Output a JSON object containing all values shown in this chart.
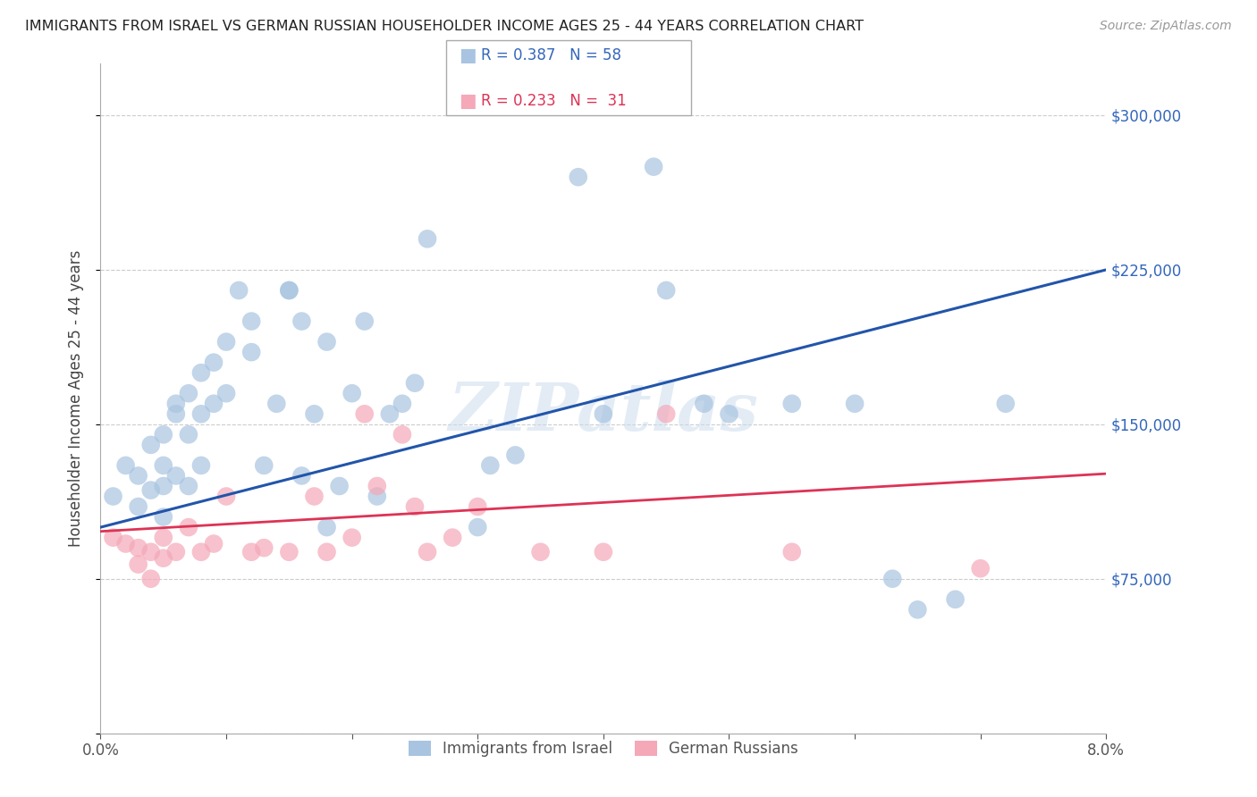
{
  "title": "IMMIGRANTS FROM ISRAEL VS GERMAN RUSSIAN HOUSEHOLDER INCOME AGES 25 - 44 YEARS CORRELATION CHART",
  "source": "Source: ZipAtlas.com",
  "ylabel": "Householder Income Ages 25 - 44 years",
  "legend_label1": "Immigrants from Israel",
  "legend_label2": "German Russians",
  "legend_r1": "0.387",
  "legend_n1": "58",
  "legend_r2": "0.233",
  "legend_n2": "31",
  "xlim": [
    0.0,
    0.08
  ],
  "ylim": [
    0,
    325000
  ],
  "yticks": [
    0,
    75000,
    150000,
    225000,
    300000
  ],
  "xticks": [
    0.0,
    0.01,
    0.02,
    0.03,
    0.04,
    0.05,
    0.06,
    0.07,
    0.08
  ],
  "xtick_labels": [
    "0.0%",
    "",
    "",
    "",
    "",
    "",
    "",
    "",
    "8.0%"
  ],
  "watermark": "ZIPatlas",
  "blue_color": "#a8c4e0",
  "pink_color": "#f4a8b8",
  "line_blue": "#2255aa",
  "line_pink": "#dd3355",
  "blue_line_x0": 0.0,
  "blue_line_y0": 100000,
  "blue_line_x1": 0.08,
  "blue_line_y1": 225000,
  "pink_line_x0": 0.0,
  "pink_line_y0": 98000,
  "pink_line_x1": 0.08,
  "pink_line_y1": 126000,
  "israel_x": [
    0.001,
    0.002,
    0.003,
    0.003,
    0.004,
    0.004,
    0.005,
    0.005,
    0.005,
    0.005,
    0.006,
    0.006,
    0.006,
    0.007,
    0.007,
    0.007,
    0.008,
    0.008,
    0.008,
    0.009,
    0.009,
    0.01,
    0.01,
    0.011,
    0.012,
    0.012,
    0.013,
    0.014,
    0.015,
    0.015,
    0.016,
    0.016,
    0.017,
    0.018,
    0.018,
    0.019,
    0.02,
    0.021,
    0.022,
    0.023,
    0.024,
    0.025,
    0.026,
    0.03,
    0.031,
    0.033,
    0.038,
    0.04,
    0.044,
    0.045,
    0.048,
    0.05,
    0.055,
    0.06,
    0.063,
    0.065,
    0.068,
    0.072
  ],
  "israel_y": [
    115000,
    130000,
    110000,
    125000,
    118000,
    140000,
    105000,
    120000,
    145000,
    130000,
    155000,
    125000,
    160000,
    120000,
    165000,
    145000,
    130000,
    155000,
    175000,
    160000,
    180000,
    190000,
    165000,
    215000,
    200000,
    185000,
    130000,
    160000,
    215000,
    215000,
    200000,
    125000,
    155000,
    190000,
    100000,
    120000,
    165000,
    200000,
    115000,
    155000,
    160000,
    170000,
    240000,
    100000,
    130000,
    135000,
    270000,
    155000,
    275000,
    215000,
    160000,
    155000,
    160000,
    160000,
    75000,
    60000,
    65000,
    160000
  ],
  "german_x": [
    0.001,
    0.002,
    0.003,
    0.003,
    0.004,
    0.004,
    0.005,
    0.005,
    0.006,
    0.007,
    0.008,
    0.009,
    0.01,
    0.012,
    0.013,
    0.015,
    0.017,
    0.018,
    0.02,
    0.021,
    0.022,
    0.024,
    0.025,
    0.026,
    0.028,
    0.03,
    0.035,
    0.04,
    0.045,
    0.055,
    0.07
  ],
  "german_y": [
    95000,
    92000,
    82000,
    90000,
    88000,
    75000,
    95000,
    85000,
    88000,
    100000,
    88000,
    92000,
    115000,
    88000,
    90000,
    88000,
    115000,
    88000,
    95000,
    155000,
    120000,
    145000,
    110000,
    88000,
    95000,
    110000,
    88000,
    88000,
    155000,
    88000,
    80000
  ]
}
